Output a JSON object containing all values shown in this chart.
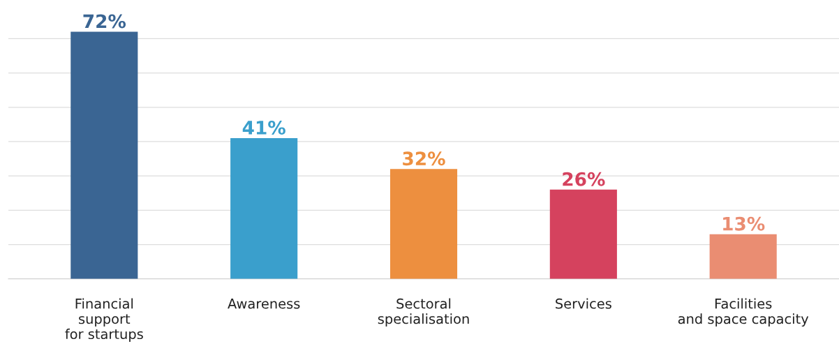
{
  "chart_data": {
    "type": "bar",
    "categories": [
      "Financial\nsupport\nfor startups",
      "Awareness",
      "Sectoral\nspecialisation",
      "Services",
      "Facilities\nand space capacity"
    ],
    "values": [
      72,
      41,
      32,
      26,
      13
    ],
    "colors": [
      "#3a6593",
      "#3a9fcc",
      "#ed8f3f",
      "#d5425e",
      "#ea8d72"
    ],
    "value_labels": [
      "72%",
      "41%",
      "32%",
      "26%",
      "13%"
    ],
    "yticks": [
      {
        "value": 0,
        "label": null
      },
      {
        "value": 10,
        "label": null
      },
      {
        "value": 20,
        "label": null
      },
      {
        "value": 30,
        "label": null
      },
      {
        "value": 40,
        "label": null
      },
      {
        "value": 50,
        "label": null
      },
      {
        "value": 60,
        "label": null
      },
      {
        "value": 70,
        "label": null
      }
    ],
    "grid": "y",
    "tick_labels": "x"
  }
}
